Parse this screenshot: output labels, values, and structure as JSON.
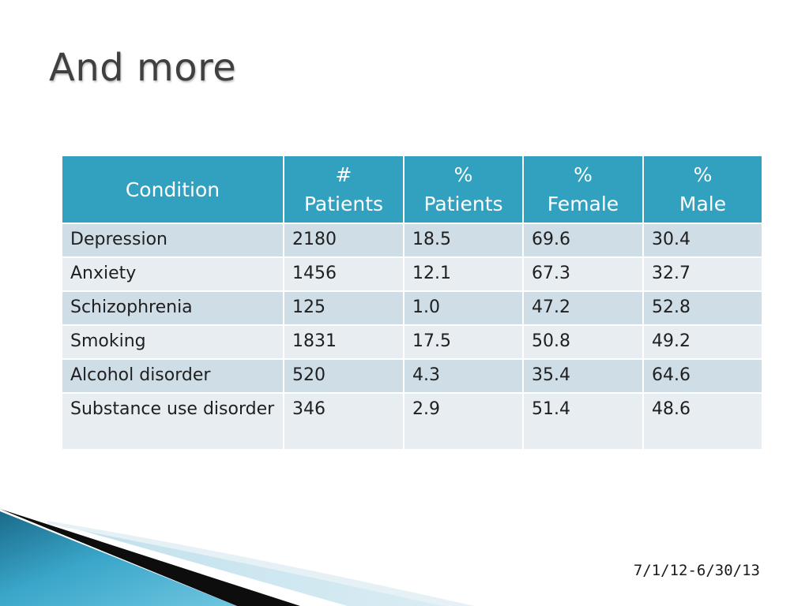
{
  "slide": {
    "title": "And more",
    "footer_date": "7/1/12-6/30/13"
  },
  "table": {
    "headers": [
      [
        "Condition"
      ],
      [
        "#",
        "Patients"
      ],
      [
        "%",
        "Patients"
      ],
      [
        "%",
        "Female"
      ],
      [
        "%",
        "Male"
      ]
    ],
    "rows": [
      [
        "Depression",
        "2180",
        "18.5",
        "69.6",
        "30.4"
      ],
      [
        "Anxiety",
        "1456",
        "12.1",
        "67.3",
        "32.7"
      ],
      [
        "Schizophrenia",
        "125",
        "1.0",
        "47.2",
        "52.8"
      ],
      [
        "Smoking",
        "1831",
        "17.5",
        "50.8",
        "49.2"
      ],
      [
        "Alcohol disorder",
        "520",
        "4.3",
        "35.4",
        "64.6"
      ],
      [
        "Substance use disorder",
        "346",
        "2.9",
        "51.4",
        "48.6"
      ]
    ]
  },
  "colors": {
    "header_bg": "#31a1bf",
    "row_odd": "#cfdde6",
    "row_even": "#e8edf2",
    "title_text": "#404040"
  }
}
